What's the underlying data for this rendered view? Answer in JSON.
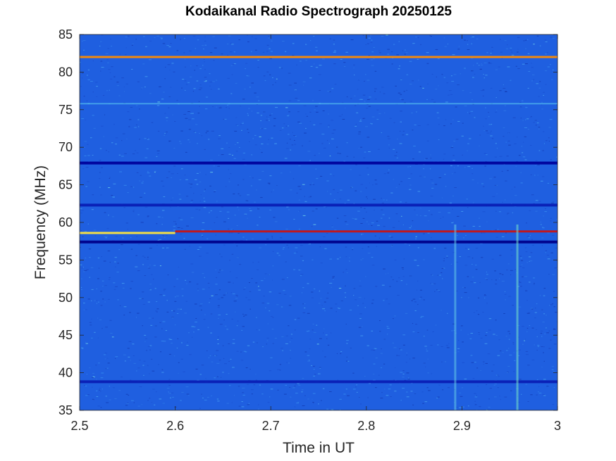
{
  "chart_data": {
    "type": "heatmap",
    "title": "Kodaikanal Radio Spectrograph  20250125",
    "xlabel": "Time in UT",
    "ylabel": "Frequency (MHz)",
    "xlim": [
      2.5,
      3.0
    ],
    "ylim": [
      35,
      85
    ],
    "xticks": [
      2.5,
      2.6,
      2.7,
      2.8,
      2.9,
      3.0
    ],
    "xtick_labels": [
      "2.5",
      "2.6",
      "2.7",
      "2.8",
      "2.9",
      "3"
    ],
    "yticks": [
      35,
      40,
      45,
      50,
      55,
      60,
      65,
      70,
      75,
      80,
      85
    ],
    "ytick_labels": [
      "35",
      "40",
      "45",
      "50",
      "55",
      "60",
      "65",
      "70",
      "75",
      "80",
      "85"
    ],
    "colormap": "jet",
    "background_color": "#1f5fe0",
    "features": [
      {
        "kind": "bright_band",
        "freq_mhz": 82.0,
        "t_start": 2.5,
        "t_end": 3.0,
        "color": "#ff8c00"
      },
      {
        "kind": "bright_band",
        "freq_mhz": 58.6,
        "t_start": 2.5,
        "t_end": 2.6,
        "color": "#ffe63c"
      },
      {
        "kind": "bright_band",
        "freq_mhz": 58.8,
        "t_start": 2.6,
        "t_end": 3.0,
        "color": "#c81414"
      },
      {
        "kind": "dark_band",
        "freq_mhz": 67.9,
        "color": "#00009a"
      },
      {
        "kind": "dark_band",
        "freq_mhz": 62.3,
        "color": "#0a1eb4"
      },
      {
        "kind": "dark_band",
        "freq_mhz": 57.4,
        "color": "#00008a"
      },
      {
        "kind": "dark_band",
        "freq_mhz": 38.8,
        "color": "#0a1eb4"
      },
      {
        "kind": "faint_band",
        "freq_mhz": 75.8,
        "color": "#5ac8f0"
      },
      {
        "kind": "vertical_streak",
        "time_ut": 2.958,
        "color": "#78e6c8"
      },
      {
        "kind": "vertical_streak",
        "time_ut": 2.893,
        "color": "#64c8e6"
      }
    ]
  }
}
